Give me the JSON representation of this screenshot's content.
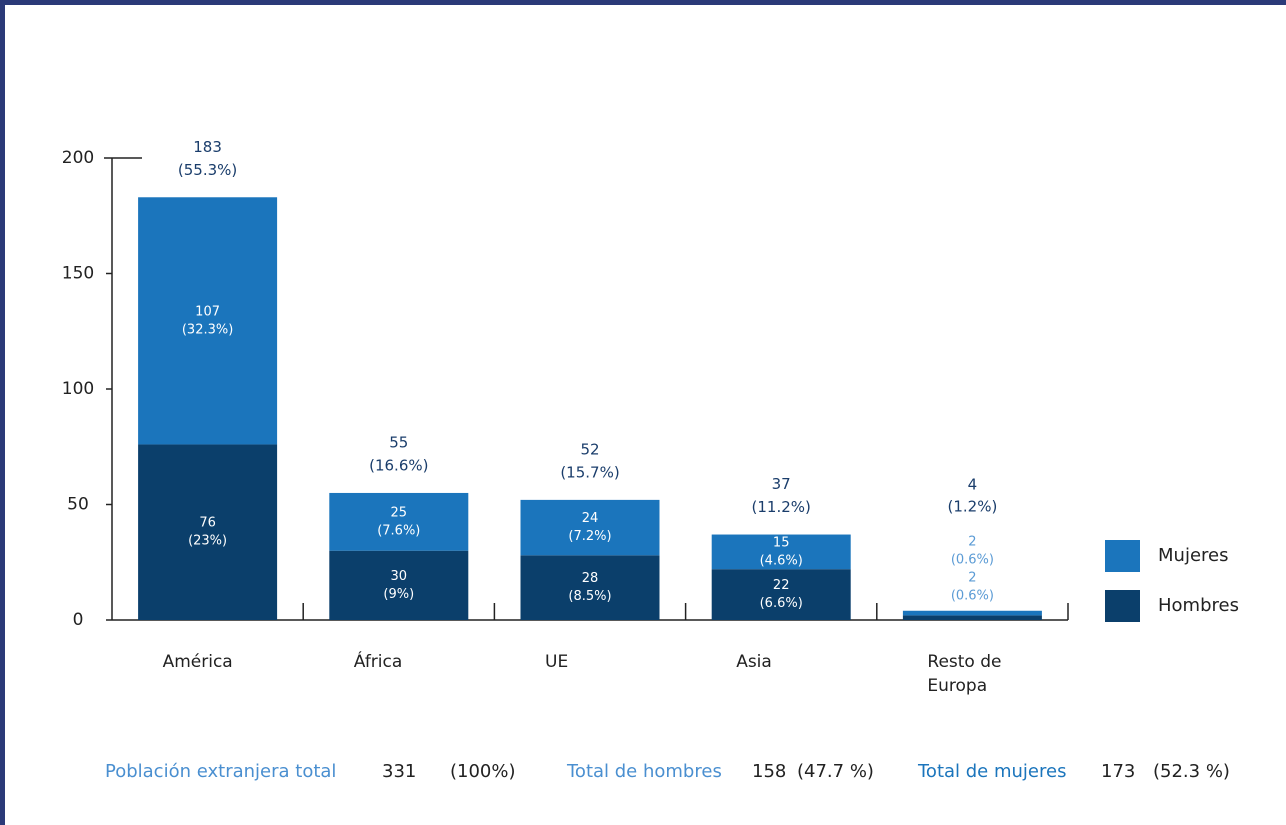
{
  "chart_data": {
    "type": "stacked_bar",
    "categories": [
      "América",
      "África",
      "UE",
      "Asia",
      "Resto de Europa"
    ],
    "series": [
      {
        "name": "Hombres",
        "color": "#0b3f6b",
        "values": [
          76,
          30,
          28,
          22,
          2
        ],
        "percent_labels": [
          "(23%)",
          "(9%)",
          "(8.5%)",
          "(6.6%)",
          "(0.6%)"
        ]
      },
      {
        "name": "Mujeres",
        "color": "#1b75bc",
        "values": [
          107,
          25,
          24,
          15,
          2
        ],
        "percent_labels": [
          "(32.3%)",
          "(7.6%)",
          "(7.2%)",
          "(4.6%)",
          "(0.6%)"
        ]
      }
    ],
    "totals": [
      183,
      55,
      52,
      37,
      4
    ],
    "total_percent_labels": [
      "(55.3%)",
      "(16.6%)",
      "(15.7%)",
      "(11.2%)",
      "(1.2%)"
    ],
    "ylim": [
      0,
      200
    ],
    "yticks": [
      0,
      50,
      100,
      150,
      200
    ],
    "legend": "right",
    "footer": [
      {
        "label": "Población extranjera total",
        "value": 331,
        "percent_label": "(100%)"
      },
      {
        "label": "Total de hombres",
        "value": 158,
        "percent_label": "(47.7 %)"
      },
      {
        "label": "Total de mujeres",
        "value": 173,
        "percent_label": "(52.3 %)"
      }
    ]
  }
}
